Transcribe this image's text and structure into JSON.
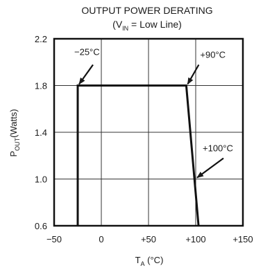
{
  "chart_data": {
    "type": "line",
    "title": "OUTPUT POWER DERATING",
    "subtitle": {
      "open": "(V",
      "sub": "IN",
      "rest": " = Low Line)"
    },
    "xlabel": {
      "main": "T",
      "sub": "A",
      "unit": " (°C)"
    },
    "ylabel": {
      "main": "P",
      "sub": "OUT",
      "unit": "(Watts)"
    },
    "xlim": [
      -50,
      150
    ],
    "ylim": [
      0.6,
      2.2
    ],
    "x_ticks": [
      {
        "value": -50,
        "label": "−50"
      },
      {
        "value": 0,
        "label": "0"
      },
      {
        "value": 50,
        "label": "+50"
      },
      {
        "value": 100,
        "label": "+100"
      },
      {
        "value": 150,
        "label": "+150"
      }
    ],
    "y_ticks": [
      {
        "value": 0.6,
        "label": "0.6"
      },
      {
        "value": 1.0,
        "label": "1.0"
      },
      {
        "value": 1.4,
        "label": "1.4"
      },
      {
        "value": 1.8,
        "label": "1.8"
      },
      {
        "value": 2.2,
        "label": "2.2"
      }
    ],
    "grid": true,
    "series": [
      {
        "x": [
          -25,
          -25,
          90,
          103,
          103
        ],
        "y": [
          0.6,
          1.8,
          1.8,
          0.6,
          0.6
        ]
      }
    ],
    "annotations": [
      {
        "text": "−25°C",
        "x": -25,
        "y": 1.8
      },
      {
        "text": "+90°C",
        "x": 90,
        "y": 1.8
      },
      {
        "text": "+100°C",
        "x": 100,
        "y": 1.0
      }
    ]
  }
}
